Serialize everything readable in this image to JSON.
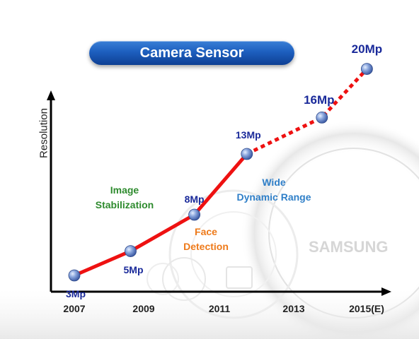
{
  "title": "Camera Sensor",
  "chart_data": {
    "type": "line",
    "ylabel": "Resolution",
    "xlabel": "",
    "x_ticks": [
      "2007",
      "2009",
      "2011",
      "2013",
      "2015(E)"
    ],
    "series": [
      {
        "points": [
          {
            "year": 2007,
            "value": 3,
            "label": "3Mp",
            "estimated": false
          },
          {
            "year": 2008.5,
            "value": 5,
            "label": "5Mp",
            "estimated": false
          },
          {
            "year": 2010.2,
            "value": 8,
            "label": "8Mp",
            "estimated": false
          },
          {
            "year": 2011.6,
            "value": 13,
            "label": "13Mp",
            "estimated": false
          },
          {
            "year": 2013.6,
            "value": 16,
            "label": "16Mp",
            "estimated": true
          },
          {
            "year": 2014.8,
            "value": 20,
            "label": "20Mp",
            "estimated": true
          }
        ]
      }
    ],
    "annotations": [
      {
        "lines": [
          "Image",
          "Stabilization"
        ],
        "color": "#2e8b2e"
      },
      {
        "lines": [
          "Face",
          "Detection"
        ],
        "color": "#ee7a1a"
      },
      {
        "lines": [
          "Wide",
          "Dynamic Range"
        ],
        "color": "#2f7fc8"
      }
    ],
    "colors": {
      "line": "#ee1111",
      "marker": "#6f8fd0",
      "point_label": "#1a2a9a",
      "axis": "#000000"
    },
    "watermark": "SAMSUNG"
  }
}
